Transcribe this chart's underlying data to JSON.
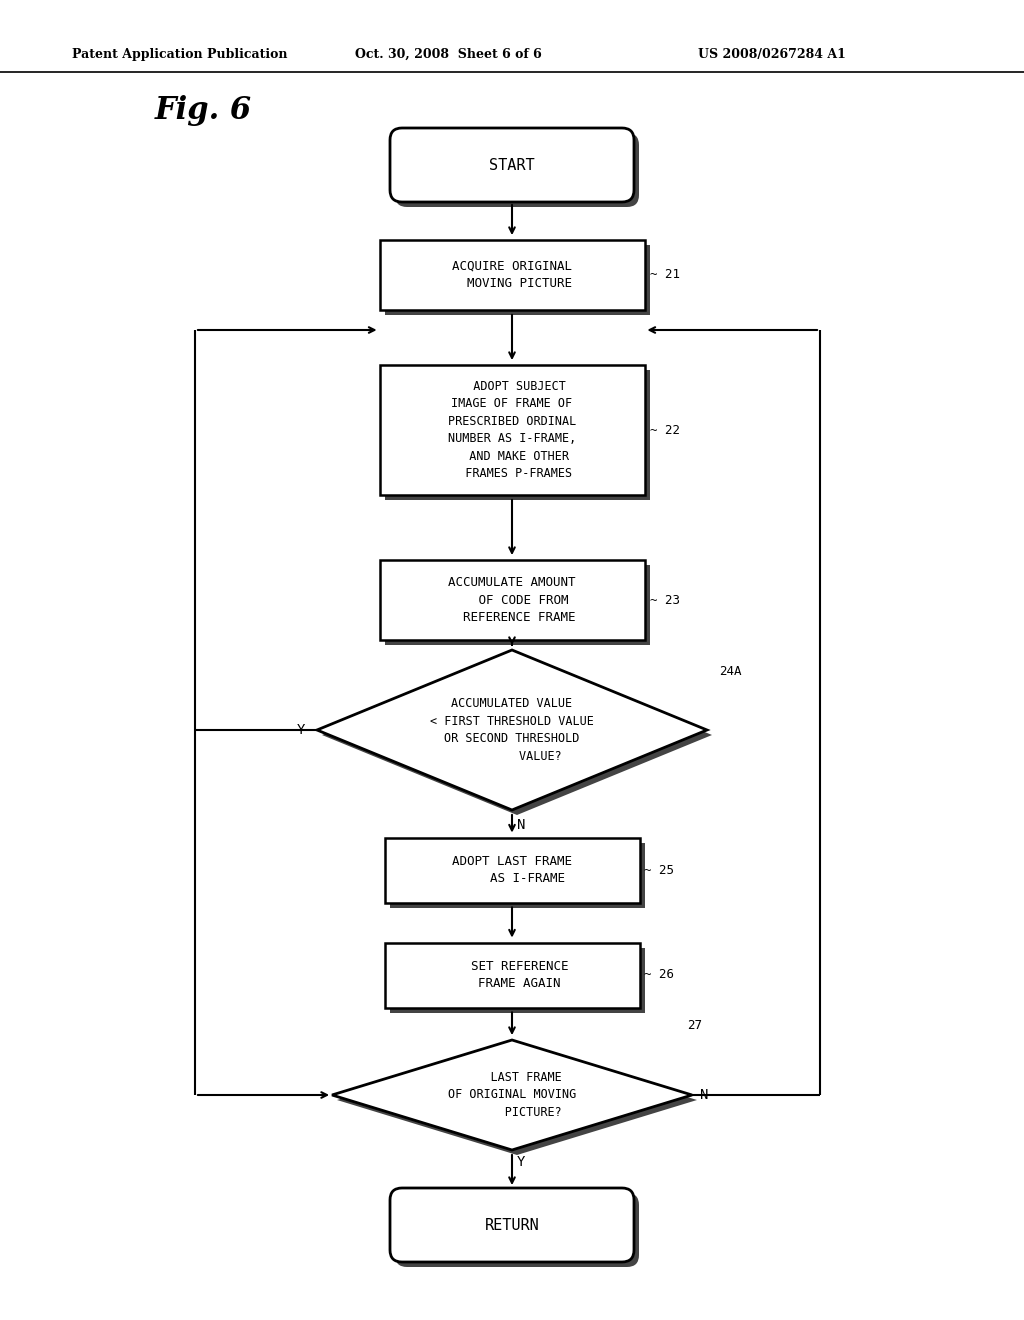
{
  "background_color": "#ffffff",
  "header_left": "Patent Application Publication",
  "header_center": "Oct. 30, 2008  Sheet 6 of 6",
  "header_right": "US 2008/0267284 A1",
  "fig_label": "Fig. 6",
  "start_text": "START",
  "return_text": "RETURN",
  "box21_text": "ACQUIRE ORIGINAL\n  MOVING PICTURE",
  "box21_ref": "~ 21",
  "box22_text": "  ADOPT SUBJECT\nIMAGE OF FRAME OF\nPRESCRIBED ORDINAL\nNUMBER AS I-FRAME,\n  AND MAKE OTHER\n  FRAMES P-FRAMES",
  "box22_ref": "~ 22",
  "box23_text": "ACCUMULATE AMOUNT\n   OF CODE FROM\n  REFERENCE FRAME",
  "box23_ref": "~ 23",
  "diamond24_text": "ACCUMULATED VALUE\n< FIRST THRESHOLD VALUE\nOR SECOND THRESHOLD\n        VALUE?",
  "diamond24_ref": "24A",
  "box25_text": "ADOPT LAST FRAME\n    AS I-FRAME",
  "box25_ref": "~ 25",
  "box26_text": "  SET REFERENCE\n  FRAME AGAIN",
  "box26_ref": "~ 26",
  "diamond27_text": "    LAST FRAME\nOF ORIGINAL MOVING\n      PICTURE?",
  "diamond27_ref": "27"
}
